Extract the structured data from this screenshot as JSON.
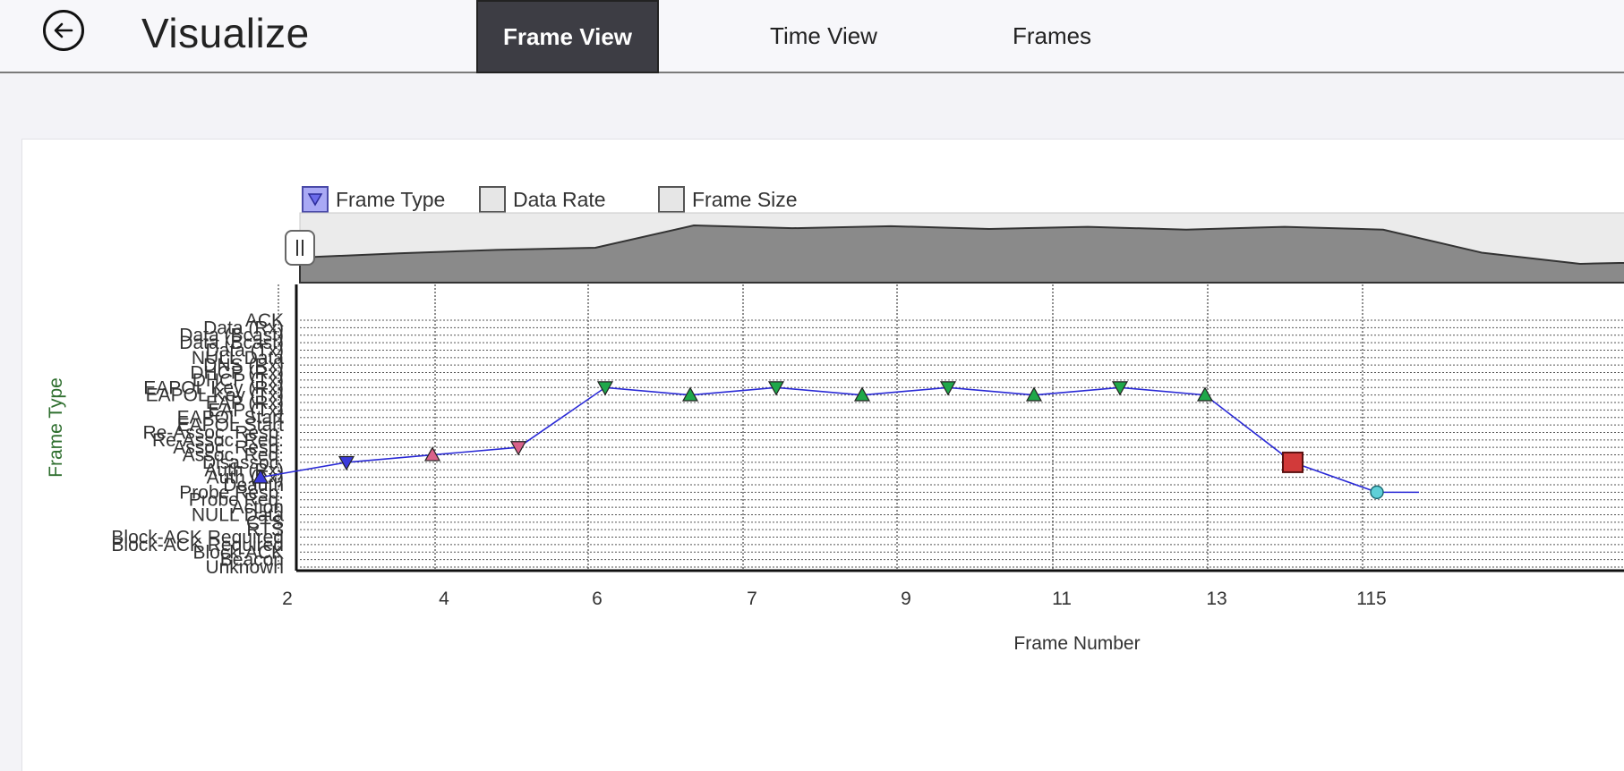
{
  "header": {
    "title": "Visualize",
    "tabs": [
      {
        "label": "Frame View",
        "active": true
      },
      {
        "label": "Time View",
        "active": false
      },
      {
        "label": "Frames",
        "active": false
      }
    ]
  },
  "legend": [
    {
      "label": "Frame Type",
      "checked": true
    },
    {
      "label": "Data Rate",
      "checked": false
    },
    {
      "label": "Frame Size",
      "checked": false
    }
  ],
  "colors": {
    "accent": "#3d3d44",
    "line": "#2a2ad6",
    "green_marker": "#1fa84a",
    "pink_marker": "#d9628a",
    "blue_marker": "#3b3bdc",
    "red_marker": "#d23a3a",
    "cyan_marker": "#5fd0d8"
  },
  "chart_data": {
    "type": "scatter",
    "ylabel": "Frame Type",
    "xlabel": "Frame Number",
    "x_tick_labels": [
      "2",
      "4",
      "6",
      "7",
      "9",
      "11",
      "13",
      "115"
    ],
    "y_categories": [
      "ACK",
      "Data (Rx)",
      "Data (Bcast)",
      "Data (Bcast)",
      "Data (Tx)",
      "NULL Data",
      "DNS (Rx)",
      "DHCP (Rx)",
      "DHCP (Tx)",
      "EAPOL Key (Rx)",
      "EAPOL Key (Tx)",
      "EAP (Rx)",
      "EAP (Tx)",
      "EAPOL Start",
      "EAPOL Start",
      "Re-Assoc. Resp.",
      "Re-Assoc. Req.",
      "Assoc. Resp.",
      "Assoc. Req.",
      "Disassoc.",
      "Auth (Rx)",
      "Auth (Tx)",
      "Deauth",
      "Probe Resp.",
      "Probe Req.",
      "Action",
      "NULL Data",
      "CTS",
      "RTS",
      "Block-ACK Required",
      "Block-ACK Required",
      "Block-ACK",
      "Beacon",
      "Unknown"
    ],
    "minimap": [
      {
        "x": 1,
        "v": 0.36
      },
      {
        "x": 2,
        "v": 0.42
      },
      {
        "x": 3,
        "v": 0.47
      },
      {
        "x": 4,
        "v": 0.5
      },
      {
        "x": 5,
        "v": 0.82
      },
      {
        "x": 6,
        "v": 0.78
      },
      {
        "x": 7,
        "v": 0.81
      },
      {
        "x": 8,
        "v": 0.77
      },
      {
        "x": 9,
        "v": 0.8
      },
      {
        "x": 10,
        "v": 0.76
      },
      {
        "x": 11,
        "v": 0.8
      },
      {
        "x": 12,
        "v": 0.76
      },
      {
        "x": 13,
        "v": 0.43
      },
      {
        "x": 14,
        "v": 0.27
      },
      {
        "x": 15,
        "v": 0.3
      }
    ],
    "series": [
      {
        "points": [
          {
            "x": 1,
            "type": "Auth (Tx)",
            "shape": "triangle-up",
            "color": "blue"
          },
          {
            "x": 2,
            "type": "Disassoc.",
            "shape": "triangle-down",
            "color": "blue"
          },
          {
            "x": 3,
            "type": "Assoc. Req.",
            "shape": "triangle-up",
            "color": "pink"
          },
          {
            "x": 4,
            "type": "Assoc. Resp.",
            "shape": "triangle-down",
            "color": "pink"
          },
          {
            "x": 5,
            "type": "EAPOL Key (Rx)",
            "shape": "triangle-down",
            "color": "green"
          },
          {
            "x": 6,
            "type": "EAPOL Key (Tx)",
            "shape": "triangle-up",
            "color": "green"
          },
          {
            "x": 7,
            "type": "EAPOL Key (Rx)",
            "shape": "triangle-down",
            "color": "green"
          },
          {
            "x": 8,
            "type": "EAPOL Key (Tx)",
            "shape": "triangle-up",
            "color": "green"
          },
          {
            "x": 9,
            "type": "EAPOL Key (Rx)",
            "shape": "triangle-down",
            "color": "green"
          },
          {
            "x": 10,
            "type": "EAPOL Key (Tx)",
            "shape": "triangle-up",
            "color": "green"
          },
          {
            "x": 11,
            "type": "EAPOL Key (Rx)",
            "shape": "triangle-down",
            "color": "green"
          },
          {
            "x": 12,
            "type": "EAPOL Key (Tx)",
            "shape": "triangle-up",
            "color": "green"
          },
          {
            "x": 13,
            "type": "Disassoc.",
            "shape": "square",
            "color": "red"
          },
          {
            "x": 14,
            "type": "Probe Resp.",
            "shape": "circle",
            "color": "cyan"
          },
          {
            "x": 15,
            "type": "Probe Resp.",
            "shape": "none",
            "color": "cyan"
          }
        ]
      }
    ]
  }
}
